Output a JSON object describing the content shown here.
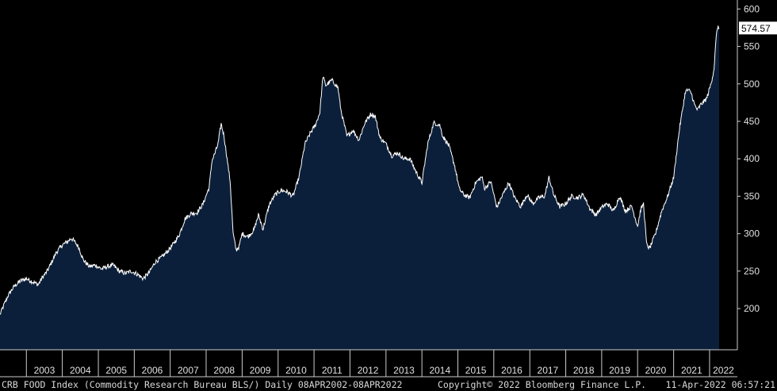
{
  "footer": {
    "left": "CRB FOOD Index (Commodity Research Bureau BLS/)  Daily 08APR2002-08APR2022",
    "copyright": "Copyright© 2022 Bloomberg Finance L.P.",
    "timestamp": "11-Apr-2022 06:57:21"
  },
  "colors": {
    "background": "#000000",
    "area_fill": "#0b1f3a",
    "line": "#ffffff",
    "axis": "#cccccc",
    "text": "#e0e0e0"
  },
  "chart_data": {
    "type": "area",
    "title": "",
    "xlabel": "",
    "ylabel": "",
    "ylim": [
      145,
      612
    ],
    "xlim": [
      "2002-04-08",
      "2022-04-08"
    ],
    "y_axis_position": "right",
    "grid": false,
    "yticks": [
      200,
      250,
      300,
      350,
      400,
      450,
      500,
      550,
      600
    ],
    "xtick_labels": [
      "2003",
      "2004",
      "2005",
      "2006",
      "2007",
      "2008",
      "2009",
      "2010",
      "2011",
      "2012",
      "2013",
      "2014",
      "2015",
      "2016",
      "2017",
      "2018",
      "2019",
      "2020",
      "2021",
      "2022"
    ],
    "last_value_label": "574.57",
    "series": [
      {
        "x": [
          "2002-04-08",
          "2002-05-15",
          "2002-07-01",
          "2002-09-01",
          "2002-11-01",
          "2003-01-01",
          "2003-03-01",
          "2003-05-01",
          "2003-06-15",
          "2003-08-01",
          "2003-09-15",
          "2003-11-01",
          "2004-01-01",
          "2004-03-01",
          "2004-04-01",
          "2004-05-01",
          "2004-06-15",
          "2004-08-01",
          "2004-10-01",
          "2004-12-01",
          "2005-02-01",
          "2005-04-01",
          "2005-06-01",
          "2005-08-01",
          "2005-10-01",
          "2005-12-01",
          "2006-02-01",
          "2006-04-01",
          "2006-06-01",
          "2006-08-01",
          "2006-10-01",
          "2006-12-01",
          "2007-02-01",
          "2007-04-01",
          "2007-06-01",
          "2007-08-01",
          "2007-10-01",
          "2007-12-01",
          "2008-02-01",
          "2008-03-01",
          "2008-04-01",
          "2008-05-01",
          "2008-06-01",
          "2008-07-01",
          "2008-08-01",
          "2008-09-01",
          "2008-10-01",
          "2008-11-01",
          "2008-12-01",
          "2009-01-01",
          "2009-03-01",
          "2009-05-01",
          "2009-06-15",
          "2009-08-01",
          "2009-10-01",
          "2009-12-01",
          "2010-02-01",
          "2010-04-01",
          "2010-06-01",
          "2010-08-01",
          "2010-10-01",
          "2010-12-01",
          "2011-01-15",
          "2011-03-01",
          "2011-04-01",
          "2011-05-01",
          "2011-07-01",
          "2011-09-01",
          "2011-10-01",
          "2011-12-01",
          "2012-02-01",
          "2012-04-01",
          "2012-06-01",
          "2012-08-01",
          "2012-09-15",
          "2012-11-01",
          "2013-01-01",
          "2013-03-01",
          "2013-05-01",
          "2013-07-01",
          "2013-09-01",
          "2013-11-01",
          "2014-01-01",
          "2014-03-01",
          "2014-05-01",
          "2014-07-01",
          "2014-08-01",
          "2014-10-01",
          "2014-12-01",
          "2015-01-15",
          "2015-03-01",
          "2015-05-01",
          "2015-07-01",
          "2015-09-01",
          "2015-10-01",
          "2015-12-01",
          "2016-02-01",
          "2016-04-01",
          "2016-06-01",
          "2016-08-01",
          "2016-10-01",
          "2016-12-01",
          "2017-02-01",
          "2017-04-01",
          "2017-06-01",
          "2017-07-15",
          "2017-09-01",
          "2017-11-01",
          "2018-01-01",
          "2018-03-01",
          "2018-05-01",
          "2018-07-01",
          "2018-09-01",
          "2018-11-01",
          "2019-01-01",
          "2019-03-01",
          "2019-05-01",
          "2019-07-01",
          "2019-09-01",
          "2019-11-01",
          "2020-01-01",
          "2020-02-01",
          "2020-03-01",
          "2020-04-01",
          "2020-05-01",
          "2020-07-01",
          "2020-09-01",
          "2020-11-01",
          "2021-01-01",
          "2021-03-01",
          "2021-05-01",
          "2021-06-01",
          "2021-07-01",
          "2021-08-01",
          "2021-09-01",
          "2021-10-01",
          "2021-12-01",
          "2022-01-15",
          "2022-02-15",
          "2022-03-08",
          "2022-03-20",
          "2022-04-08"
        ],
        "values": [
          192,
          204,
          218,
          230,
          237,
          240,
          236,
          232,
          242,
          250,
          262,
          275,
          285,
          290,
          294,
          290,
          282,
          265,
          256,
          258,
          253,
          256,
          258,
          250,
          247,
          250,
          246,
          240,
          248,
          262,
          268,
          276,
          286,
          298,
          320,
          327,
          328,
          340,
          362,
          398,
          408,
          420,
          447,
          430,
          400,
          370,
          300,
          278,
          283,
          300,
          296,
          305,
          325,
          306,
          338,
          352,
          358,
          356,
          350,
          375,
          420,
          436,
          445,
          462,
          510,
          498,
          505,
          495,
          465,
          430,
          438,
          425,
          448,
          460,
          456,
          428,
          420,
          404,
          408,
          400,
          400,
          383,
          368,
          420,
          448,
          445,
          430,
          418,
          390,
          360,
          352,
          348,
          368,
          376,
          360,
          370,
          335,
          352,
          368,
          348,
          336,
          352,
          340,
          348,
          350,
          375,
          352,
          336,
          340,
          350,
          348,
          352,
          334,
          325,
          335,
          340,
          330,
          350,
          330,
          337,
          310,
          332,
          340,
          286,
          280,
          300,
          330,
          350,
          375,
          440,
          490,
          492,
          487,
          472,
          465,
          472,
          480,
          500,
          520,
          560,
          575,
          574.57
        ]
      }
    ]
  }
}
